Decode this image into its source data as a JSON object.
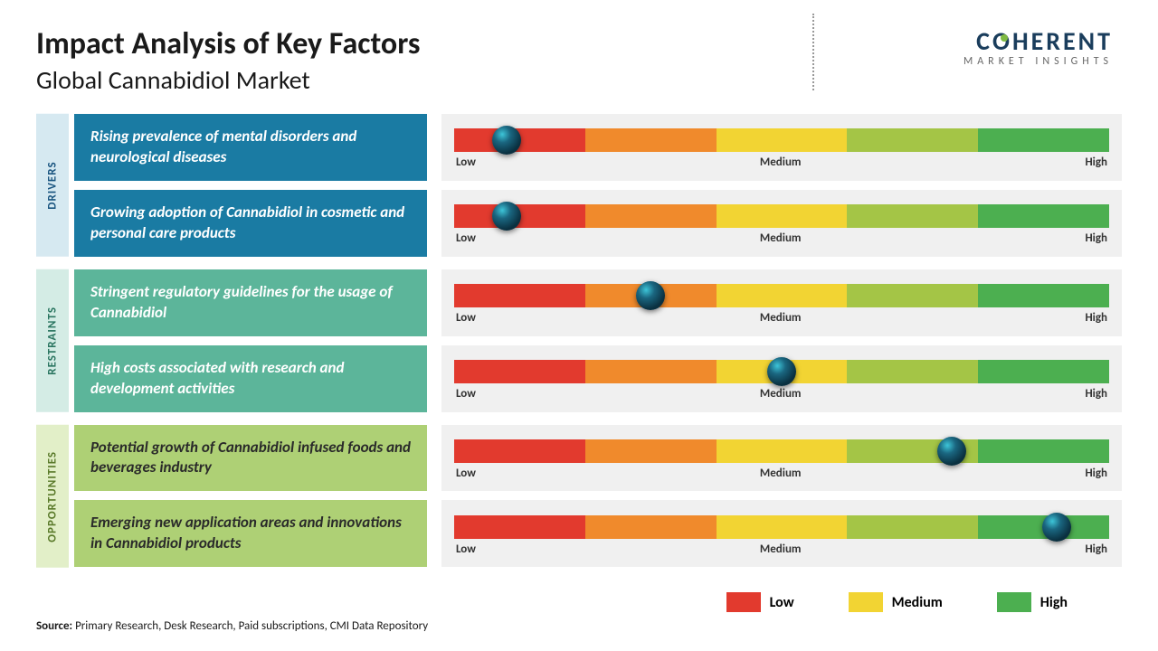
{
  "title": "Impact Analysis of Key Factors",
  "subtitle": "Global Cannabidiol Market",
  "logo": {
    "main_pre": "C",
    "main_post": "HERENT",
    "sub": "MARKET INSIGHTS"
  },
  "segment_colors": [
    "#e23a2e",
    "#f08a2c",
    "#f2d433",
    "#a4c546",
    "#4caf50"
  ],
  "slider_labels": {
    "low": "Low",
    "medium": "Medium",
    "high": "High"
  },
  "categories": [
    {
      "key": "drivers",
      "label": "DRIVERS",
      "cat_class": "cat-drivers",
      "box_class": "fb-drivers",
      "items": [
        {
          "text": "Rising prevalence of mental disorders and neurological diseases",
          "knob_pct": 8
        },
        {
          "text": "Growing adoption of Cannabidiol in cosmetic and personal care products",
          "knob_pct": 8
        }
      ]
    },
    {
      "key": "restraints",
      "label": "RESTRAINTS",
      "cat_class": "cat-restraints",
      "box_class": "fb-restraints",
      "items": [
        {
          "text": "Stringent regulatory guidelines for the usage of Cannabidiol",
          "knob_pct": 30
        },
        {
          "text": "High costs associated with research and development activities",
          "knob_pct": 50
        }
      ]
    },
    {
      "key": "opportunities",
      "label": "OPPORTUNITIES",
      "cat_class": "cat-opportunities",
      "box_class": "fb-opportunities",
      "items": [
        {
          "text": "Potential growth of Cannabidiol infused foods and beverages industry",
          "knob_pct": 76
        },
        {
          "text": "Emerging new application areas and innovations in Cannabidiol products",
          "knob_pct": 92
        }
      ]
    }
  ],
  "legend": [
    {
      "label": "Low",
      "color": "#e23a2e"
    },
    {
      "label": "Medium",
      "color": "#f2d433"
    },
    {
      "label": "High",
      "color": "#4caf50"
    }
  ],
  "source_label": "Source:",
  "source_text": " Primary Research, Desk Research, Paid subscriptions, CMI Data Repository"
}
